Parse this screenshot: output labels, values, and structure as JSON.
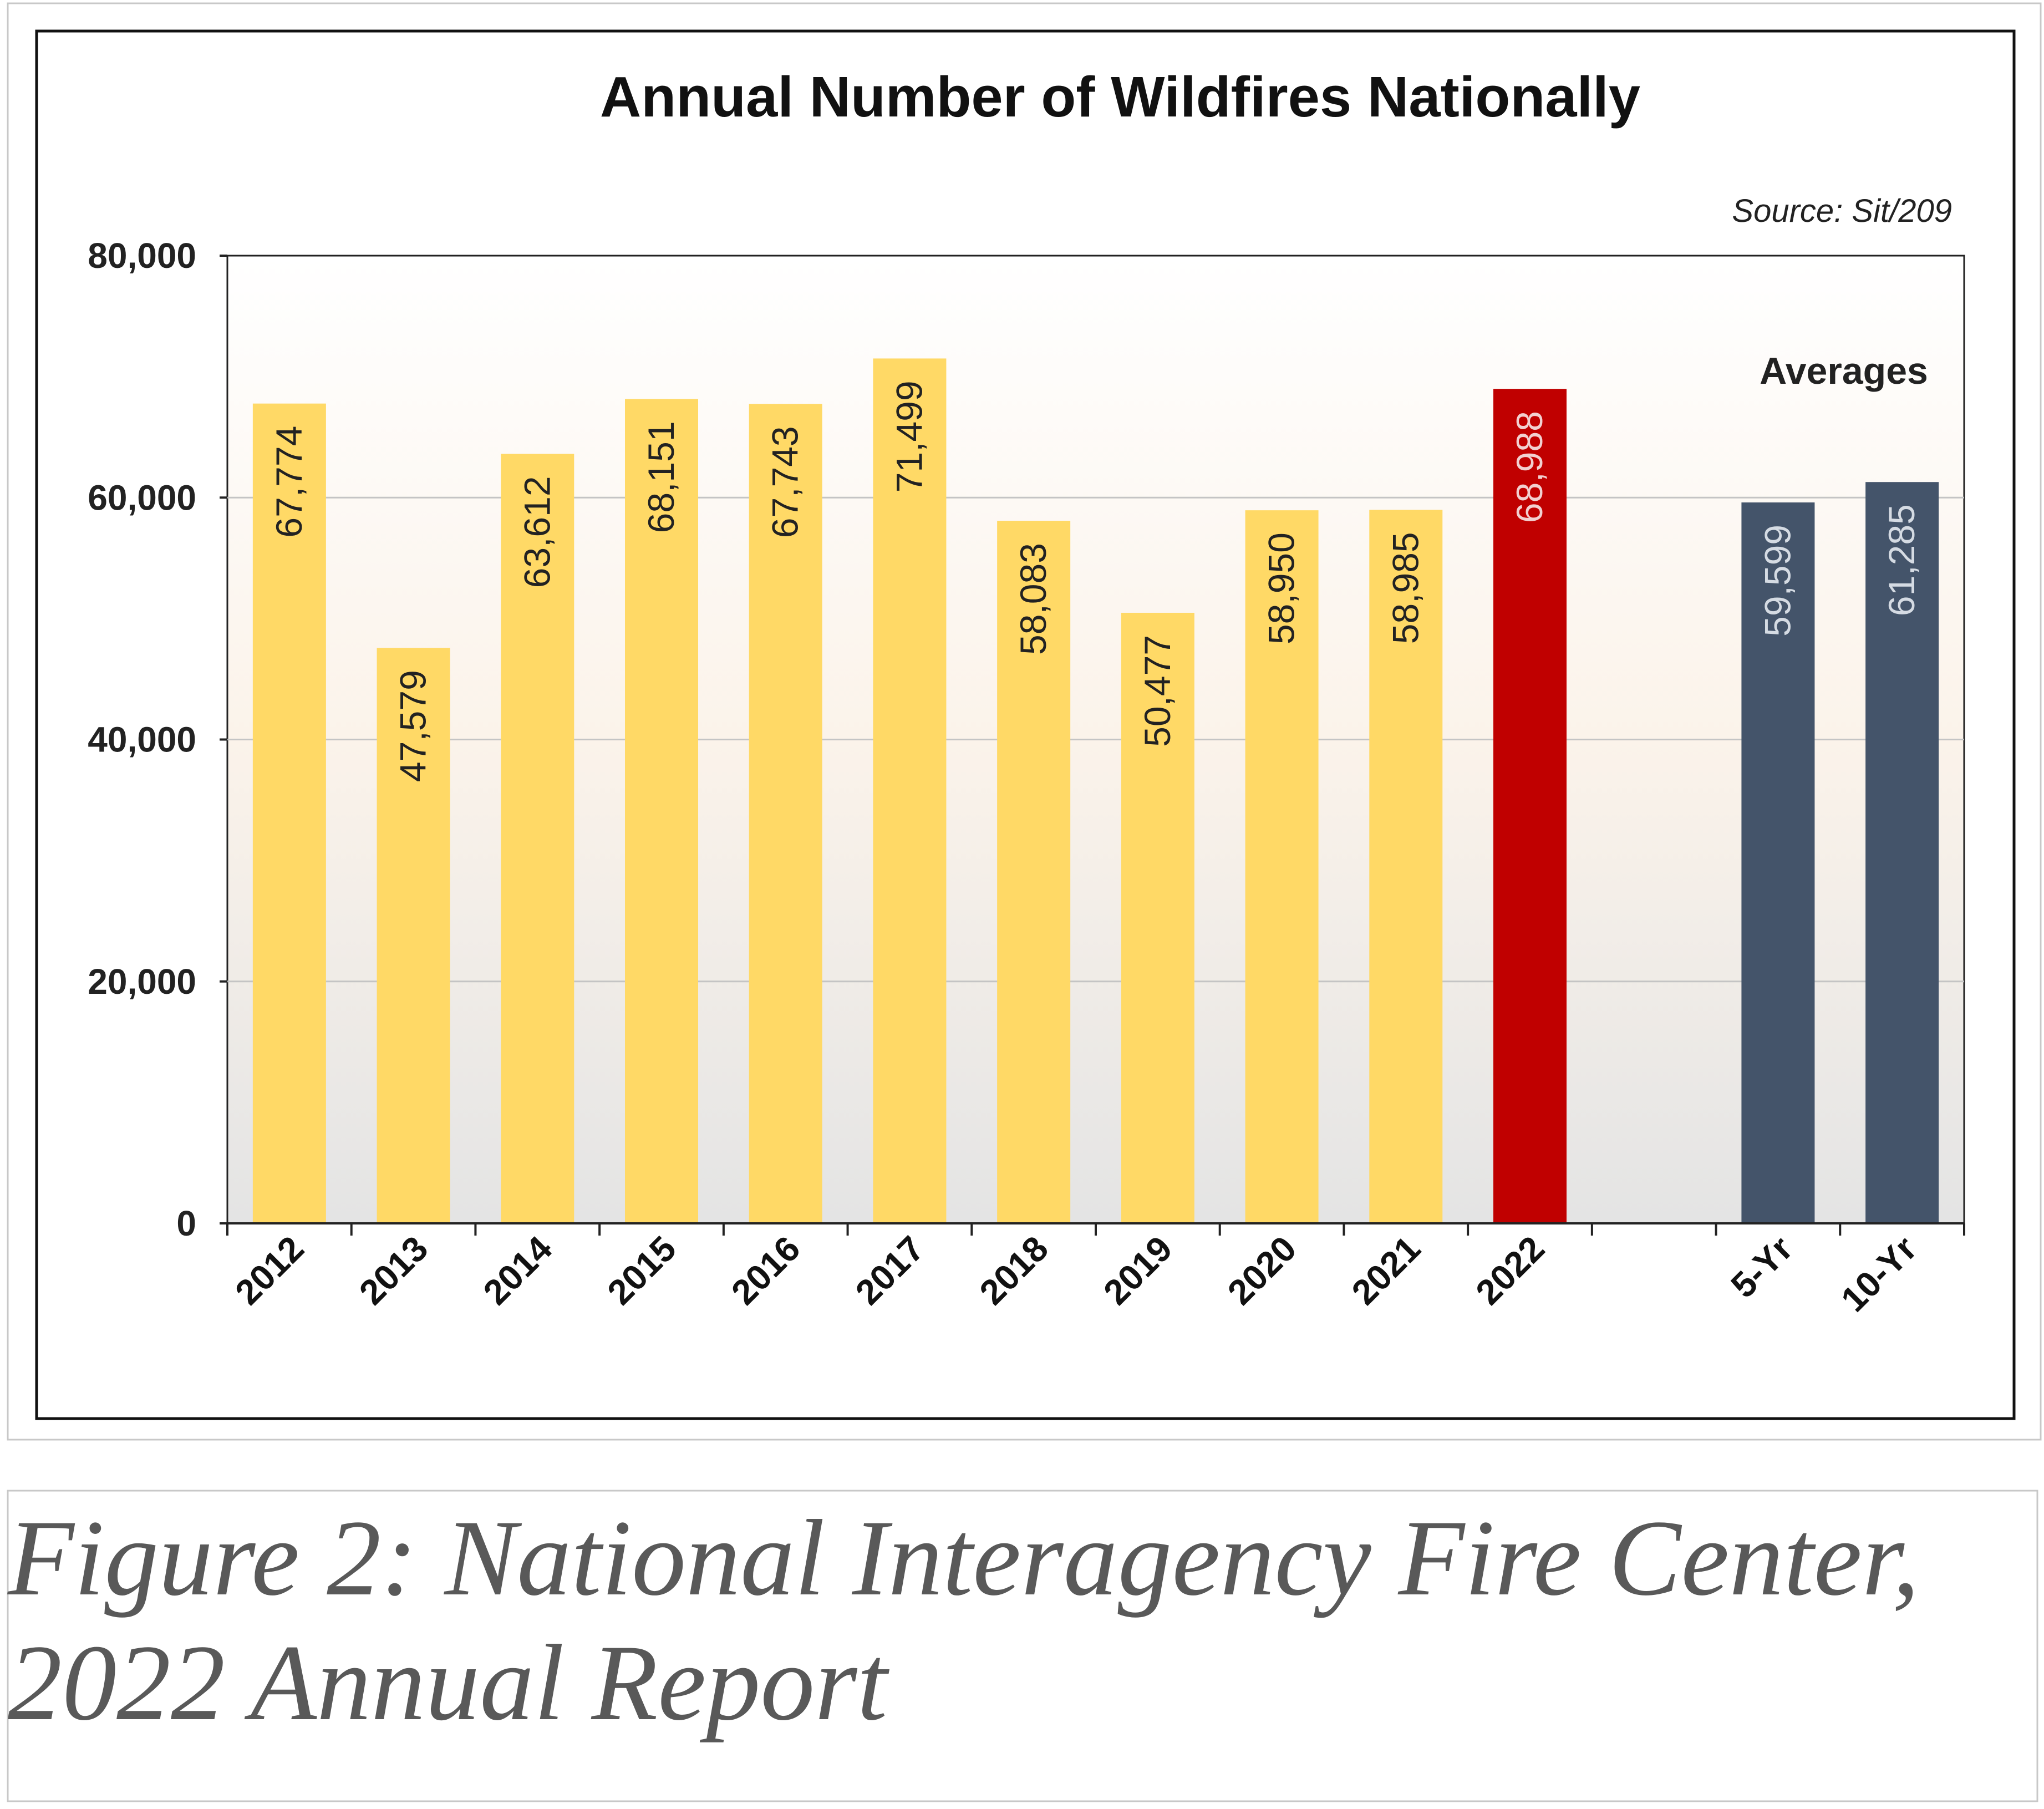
{
  "chart_data": {
    "type": "bar",
    "title": "Annual Number of Wildfires Nationally",
    "source": "Source: Sit/209",
    "group_label": "Averages",
    "categories": [
      "2012",
      "2013",
      "2014",
      "2015",
      "2016",
      "2017",
      "2018",
      "2019",
      "2020",
      "2021",
      "2022",
      "5-Yr",
      "10-Yr"
    ],
    "values": [
      67774,
      47579,
      63612,
      68151,
      67743,
      71499,
      58083,
      50477,
      58950,
      58985,
      68988,
      59599,
      61285
    ],
    "value_labels": [
      "67,774",
      "47,579",
      "63,612",
      "68,151",
      "67,743",
      "71,499",
      "58,083",
      "50,477",
      "58,950",
      "58,985",
      "68,988",
      "59,599",
      "61,285"
    ],
    "ylim": [
      0,
      80000
    ],
    "yticks": [
      0,
      20000,
      40000,
      60000,
      80000
    ],
    "ytick_labels": [
      "0",
      "20,000",
      "40,000",
      "60,000",
      "80,000"
    ],
    "xlabel": "",
    "ylabel": "",
    "grid": true,
    "colors": {
      "year": "#FFD966",
      "current": "#C00000",
      "average": "#44546A",
      "year_label": "#222222",
      "current_label": "#F2D0D0",
      "average_label": "#D5DBE3"
    }
  },
  "caption": {
    "line1": "Figure 2: National Interagency Fire Center,",
    "line2": "2022 Annual Report"
  }
}
